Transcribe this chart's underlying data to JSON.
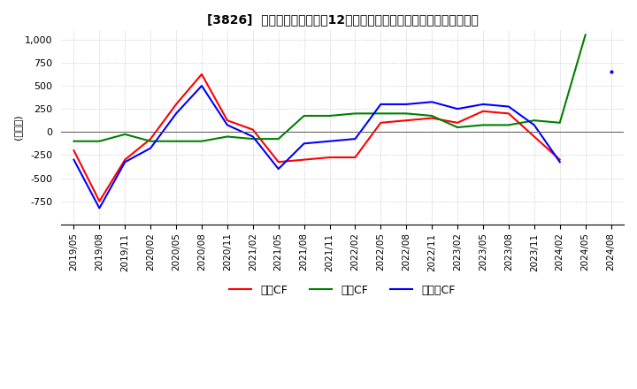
{
  "title": "[3826]  キャッシュフローの12か月移動合計の対前年同期増減額の推移",
  "ylabel": "(百万円)",
  "ylim": [
    -1000,
    1100
  ],
  "yticks": [
    -750,
    -500,
    -250,
    0,
    250,
    500,
    750,
    1000
  ],
  "background_color": "#ffffff",
  "grid_color": "#b0b0b0",
  "x_labels": [
    "2019/05",
    "2019/08",
    "2019/11",
    "2020/02",
    "2020/05",
    "2020/08",
    "2020/11",
    "2021/02",
    "2021/05",
    "2021/08",
    "2021/11",
    "2022/02",
    "2022/05",
    "2022/08",
    "2022/11",
    "2023/02",
    "2023/05",
    "2023/08",
    "2023/11",
    "2024/02",
    "2024/05",
    "2024/08"
  ],
  "operating_cf": [
    -200,
    -750,
    -300,
    -75,
    300,
    625,
    125,
    25,
    -325,
    -300,
    -275,
    -275,
    100,
    125,
    150,
    100,
    225,
    200,
    -50,
    -300,
    null,
    null
  ],
  "investing_cf": [
    -100,
    -100,
    -25,
    -100,
    -100,
    -100,
    -50,
    -75,
    -75,
    175,
    175,
    200,
    200,
    200,
    175,
    50,
    75,
    75,
    125,
    100,
    1050,
    null
  ],
  "free_cf": [
    -300,
    -825,
    -325,
    -175,
    200,
    500,
    75,
    -50,
    -400,
    -125,
    -100,
    -75,
    300,
    300,
    325,
    250,
    300,
    275,
    75,
    -325,
    null,
    650
  ],
  "operating_color": "#ff0000",
  "investing_color": "#008000",
  "free_color": "#0000ff",
  "line_width": 1.5,
  "legend_labels": [
    "営業CF",
    "投資CF",
    "フリーCF"
  ]
}
